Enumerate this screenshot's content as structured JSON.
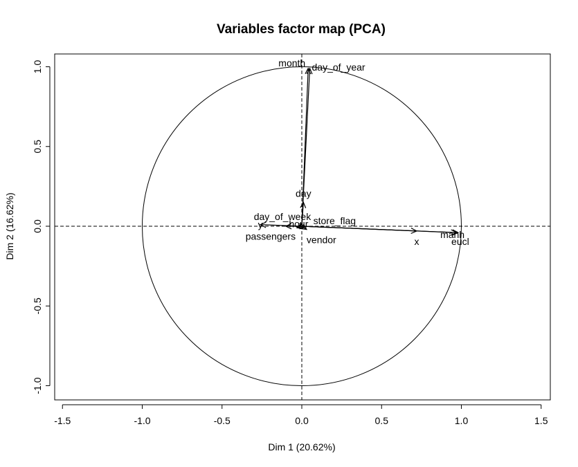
{
  "chart_data": {
    "type": "scatter",
    "title": "Variables factor map (PCA)",
    "xlabel": "Dim 1 (20.62%)",
    "ylabel": "Dim 2 (16.62%)",
    "xlim": [
      -1.5,
      1.5
    ],
    "ylim": [
      -1.0,
      1.0
    ],
    "x_ticks": [
      "-1.5",
      "-1.0",
      "-0.5",
      "0.0",
      "0.5",
      "1.0",
      "1.5"
    ],
    "y_ticks": [
      "-1.0",
      "-0.5",
      "0.0",
      "0.5",
      "1.0"
    ],
    "grid": false,
    "unit_circle": true,
    "reference_lines": "dashed lines at x=0 and y=0",
    "variables": [
      {
        "name": "month",
        "x": 0.04,
        "y": 0.99
      },
      {
        "name": "day_of_year",
        "x": 0.05,
        "y": 0.99
      },
      {
        "name": "day",
        "x": 0.01,
        "y": 0.15
      },
      {
        "name": "day_of_week",
        "x": -0.1,
        "y": 0.0
      },
      {
        "name": "y",
        "x": -0.26,
        "y": 0.01
      },
      {
        "name": "hour",
        "x": -0.02,
        "y": -0.01
      },
      {
        "name": "store_flag",
        "x": 0.02,
        "y": 0.0
      },
      {
        "name": "passengers",
        "x": -0.03,
        "y": -0.01
      },
      {
        "name": "vendor",
        "x": 0.03,
        "y": -0.02
      },
      {
        "name": "x",
        "x": 0.72,
        "y": -0.03
      },
      {
        "name": "manh",
        "x": 0.97,
        "y": -0.04
      },
      {
        "name": "eucl",
        "x": 0.98,
        "y": -0.04
      }
    ]
  }
}
